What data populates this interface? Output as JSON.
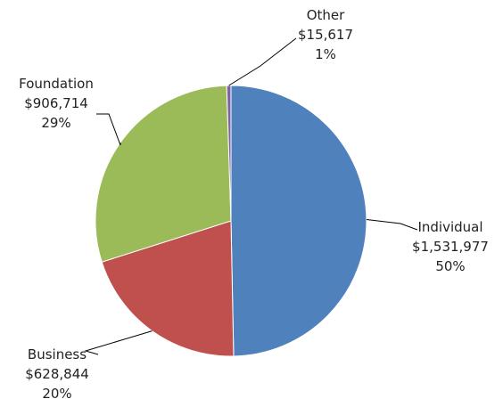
{
  "chart_data": {
    "type": "pie",
    "slices": [
      {
        "name": "Individual",
        "value": 1531977,
        "amount_label": "$1,531,977",
        "percent_label": "50%",
        "color": "#4F81BD"
      },
      {
        "name": "Business",
        "value": 628844,
        "amount_label": "$628,844",
        "percent_label": "20%",
        "color": "#C0504D"
      },
      {
        "name": "Foundation",
        "value": 906714,
        "amount_label": "$906,714",
        "percent_label": "29%",
        "color": "#9BBB59"
      },
      {
        "name": "Other",
        "value": 15617,
        "amount_label": "$15,617",
        "percent_label": "1%",
        "color": "#8064A2"
      }
    ],
    "start": "12 o'clock",
    "direction": "clockwise",
    "legend": "none",
    "data_labels": "outside with leader lines"
  }
}
